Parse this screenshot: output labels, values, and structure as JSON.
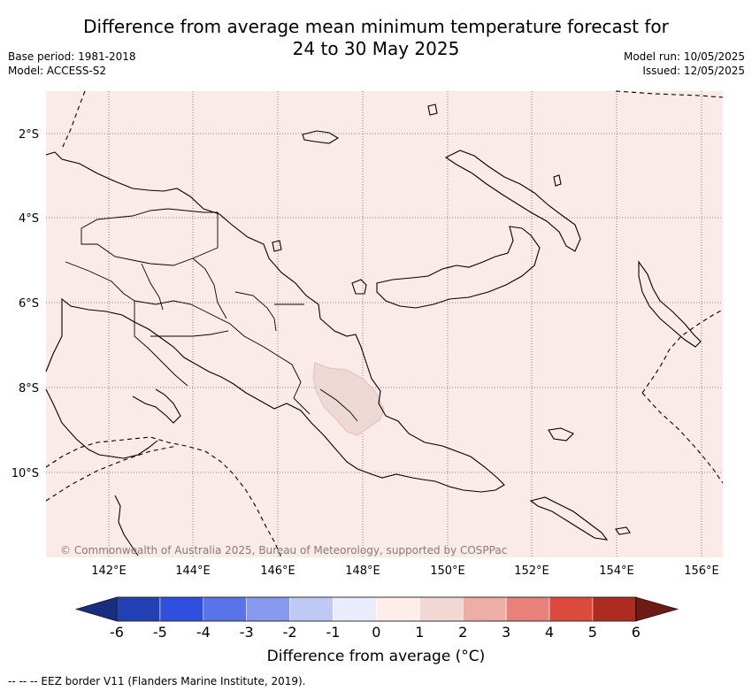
{
  "header": {
    "title_line1": "Difference from average mean minimum temperature forecast for",
    "title_line2": "24 to 30 May 2025",
    "base_period": "Base period: 1981-2018",
    "model": "Model: ACCESS-S2",
    "model_run": "Model run: 10/05/2025",
    "issued": "Issued: 12/05/2025"
  },
  "map": {
    "lat_labels": [
      "2°S",
      "4°S",
      "6°S",
      "8°S",
      "10°S"
    ],
    "lon_labels": [
      "142°E",
      "144°E",
      "146°E",
      "148°E",
      "150°E",
      "152°E",
      "154°E",
      "156°E"
    ],
    "copyright": "© Commonwealth of Australia 2025, Bureau of Meteorology, supported by COSPPac",
    "background_color": "#fbebe8",
    "anomaly_patch_color": "#eed8d6"
  },
  "colorbar": {
    "labels": [
      "-6",
      "-5",
      "-4",
      "-3",
      "-2",
      "-1",
      "0",
      "1",
      "2",
      "3",
      "4",
      "5",
      "6"
    ],
    "colors": [
      "#2340b4",
      "#2f4fdf",
      "#5a73e8",
      "#8799ee",
      "#c0c8f4",
      "#e9ecfb",
      "#fdeeea",
      "#f1d8d5",
      "#efada8",
      "#e7817a",
      "#db4a3c",
      "#ae2b21"
    ],
    "under_color": "#1a2e80",
    "over_color": "#6e1b15",
    "title": "Difference from average (°C)"
  },
  "legend": {
    "eez": "-- --  -- EEZ border V11 (Flanders Marine Institute, 2019)."
  }
}
